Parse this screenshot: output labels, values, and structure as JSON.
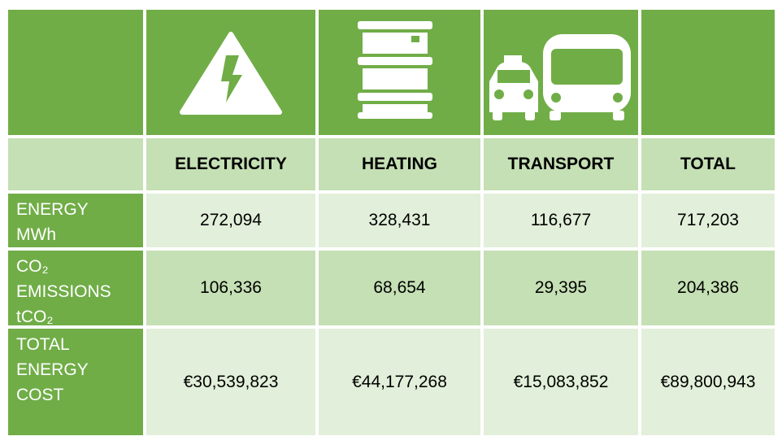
{
  "table": {
    "columns": [
      "ELECTRICITY",
      "HEATING",
      "TRANSPORT",
      "TOTAL"
    ],
    "rows": [
      {
        "label": [
          "ENERGY",
          "MWh"
        ],
        "cells": [
          "272,094",
          "328,431",
          "116,677",
          "717,203"
        ]
      },
      {
        "label": [
          "CO₂",
          "EMISSIONS",
          "tCO₂"
        ],
        "cells": [
          "106,336",
          "68,654",
          "29,395",
          "204,386"
        ]
      },
      {
        "label": [
          "TOTAL",
          "ENERGY",
          "COST"
        ],
        "cells": [
          "€30,539,823",
          "€44,177,268",
          "€15,083,852",
          "€89,800,943"
        ]
      }
    ]
  }
}
